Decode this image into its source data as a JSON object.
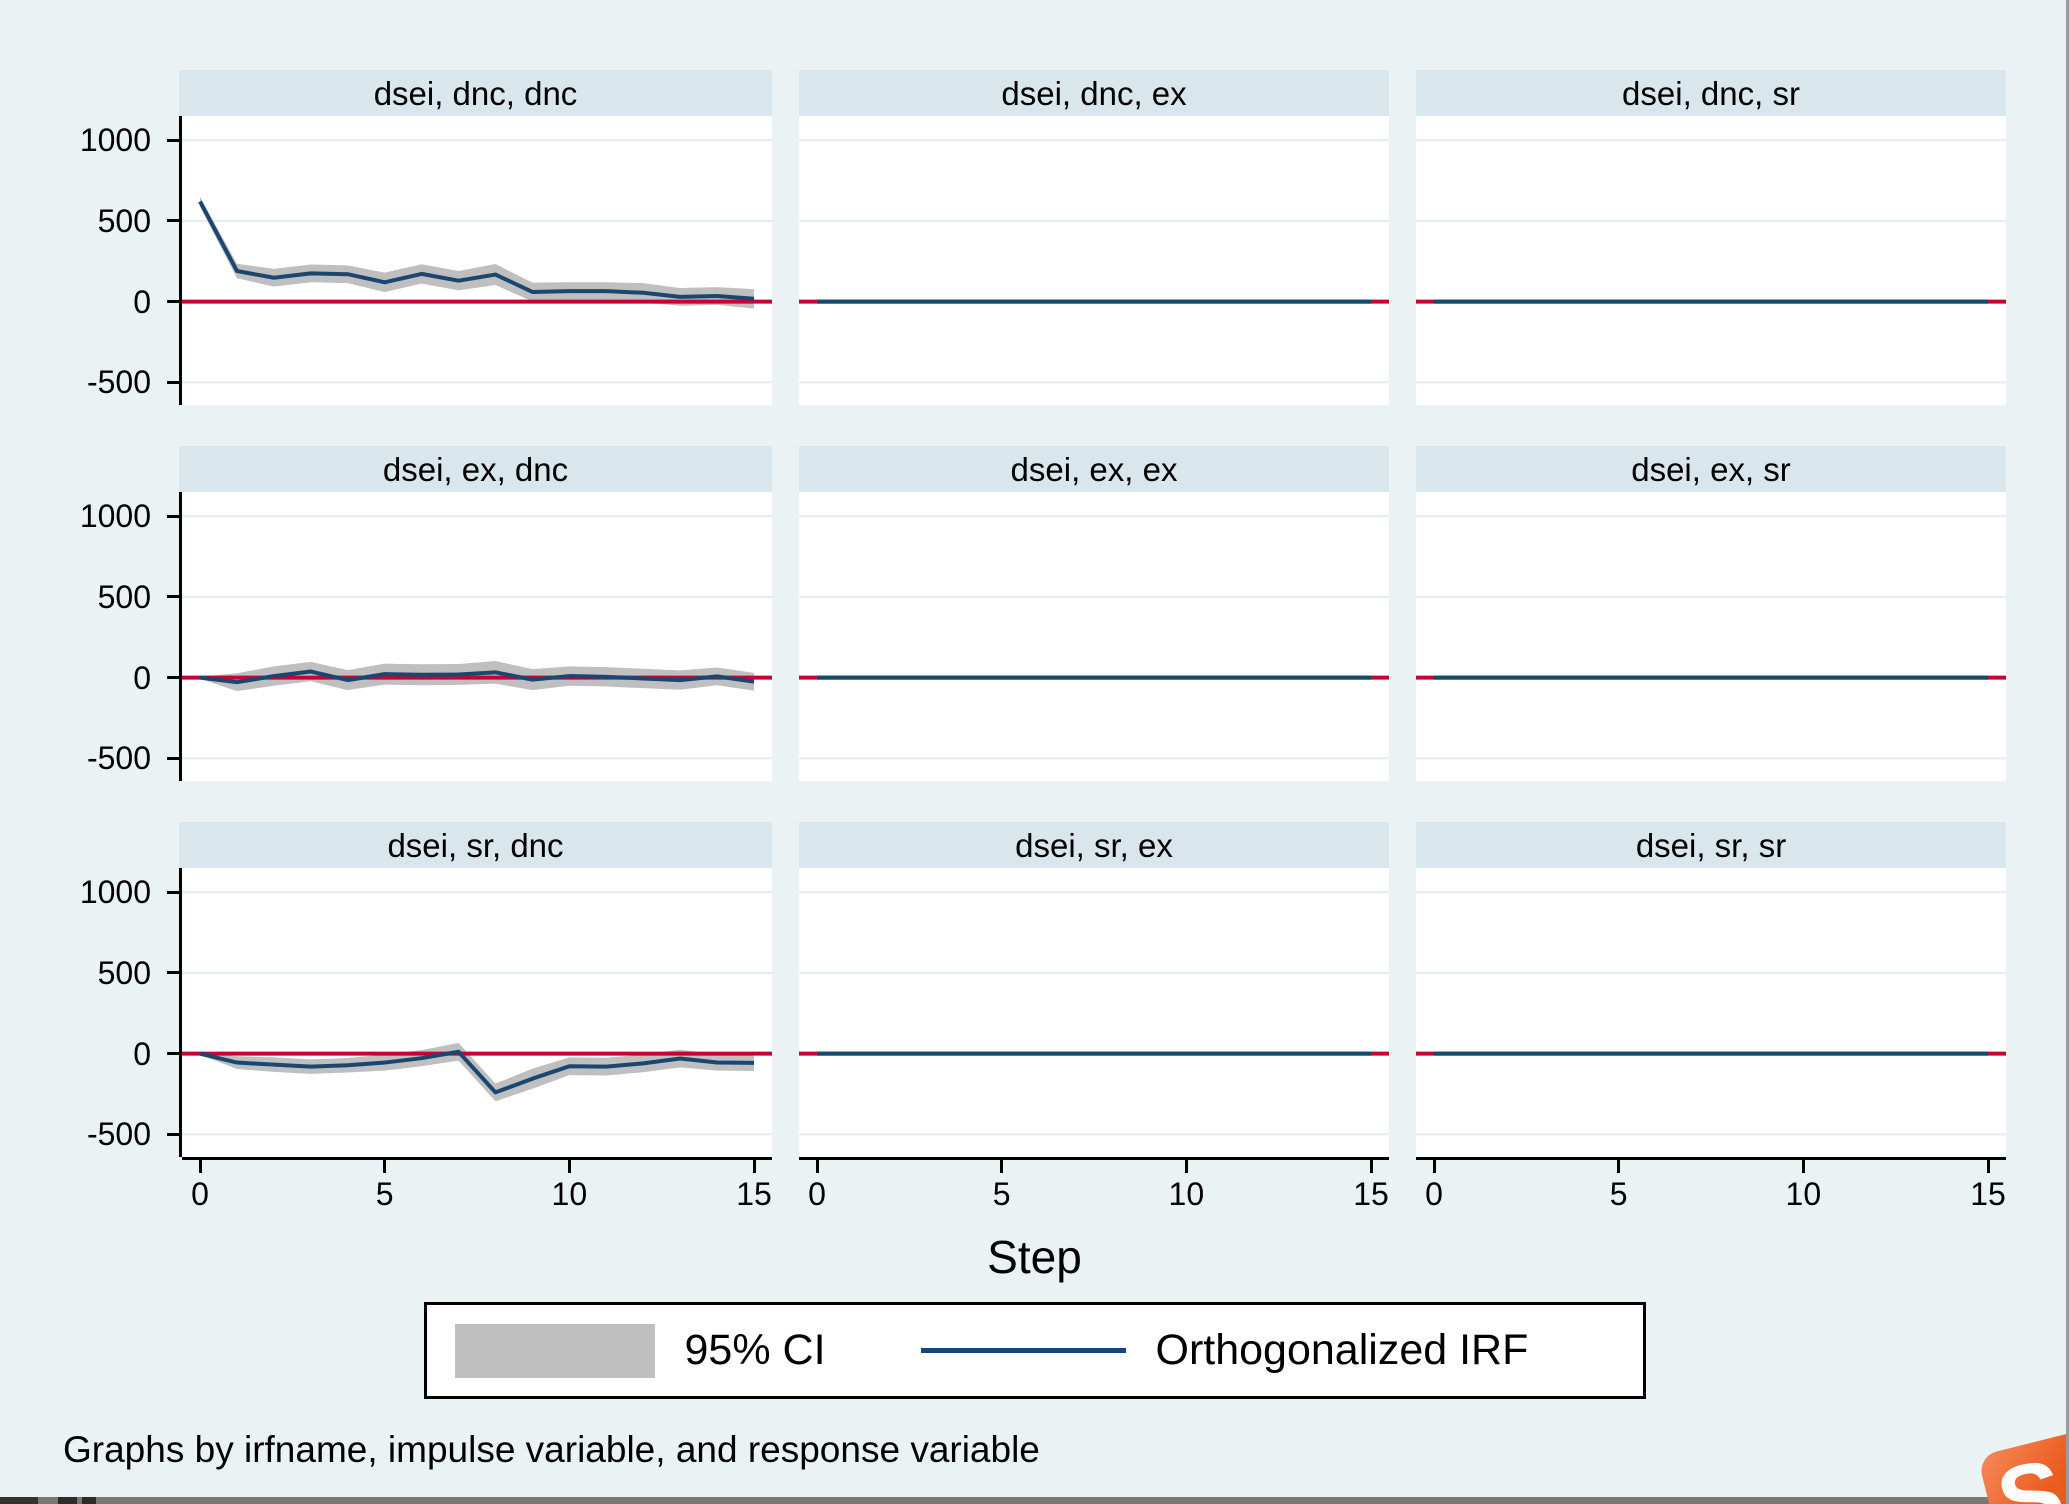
{
  "chart_data": {
    "type": "line",
    "x": [
      0,
      1,
      2,
      3,
      4,
      5,
      6,
      7,
      8,
      9,
      10,
      11,
      12,
      13,
      14,
      15
    ],
    "xlabel": "Step",
    "xticks": [
      0,
      5,
      10,
      15
    ],
    "xtick_labels": [
      "0",
      "5",
      "10",
      "15"
    ],
    "yticks": [
      1000,
      500,
      0,
      -500
    ],
    "ytick_labels": [
      "1000",
      "500",
      "0",
      "-500"
    ],
    "ylim": [
      -640,
      1150
    ],
    "grid": true,
    "zero_reference_line": 0,
    "legend": {
      "position": "bottom-center",
      "entries": [
        {
          "type": "area",
          "label": "95% CI"
        },
        {
          "type": "line",
          "label": "Orthogonalized IRF"
        }
      ]
    },
    "note": "Graphs by irfname, impulse variable, and response variable",
    "panels": [
      {
        "title": "dsei, dnc, dnc",
        "oirf": [
          620,
          190,
          148,
          175,
          170,
          120,
          172,
          130,
          168,
          60,
          65,
          65,
          55,
          30,
          35,
          18
        ],
        "ci_lo": [
          590,
          145,
          93,
          120,
          115,
          60,
          112,
          70,
          103,
          2,
          10,
          10,
          -5,
          -25,
          -20,
          -42
        ],
        "ci_hi": [
          650,
          235,
          203,
          230,
          225,
          180,
          232,
          190,
          233,
          118,
          120,
          120,
          115,
          85,
          90,
          78
        ]
      },
      {
        "title": "dsei, dnc, ex",
        "oirf": [
          0,
          0,
          0,
          0,
          0,
          0,
          0,
          0,
          0,
          0,
          0,
          0,
          0,
          0,
          0,
          0
        ]
      },
      {
        "title": "dsei, dnc, sr",
        "oirf": [
          0,
          0,
          0,
          0,
          0,
          0,
          0,
          0,
          0,
          0,
          0,
          0,
          0,
          0,
          0,
          0
        ]
      },
      {
        "title": "dsei, ex, dnc",
        "oirf": [
          0,
          -28,
          10,
          38,
          -15,
          22,
          18,
          20,
          33,
          -12,
          10,
          5,
          -5,
          -15,
          8,
          -25
        ],
        "ci_lo": [
          -6,
          -83,
          -50,
          -22,
          -77,
          -43,
          -47,
          -45,
          -37,
          -77,
          -50,
          -55,
          -65,
          -75,
          -47,
          -80
        ],
        "ci_hi": [
          6,
          27,
          70,
          98,
          47,
          87,
          83,
          85,
          103,
          53,
          70,
          65,
          55,
          45,
          63,
          30
        ]
      },
      {
        "title": "dsei, ex, ex",
        "oirf": [
          0,
          0,
          0,
          0,
          0,
          0,
          0,
          0,
          0,
          0,
          0,
          0,
          0,
          0,
          0,
          0
        ]
      },
      {
        "title": "dsei, ex, sr",
        "oirf": [
          0,
          0,
          0,
          0,
          0,
          0,
          0,
          0,
          0,
          0,
          0,
          0,
          0,
          0,
          0,
          0
        ]
      },
      {
        "title": "dsei, sr, dnc",
        "oirf": [
          0,
          -55,
          -68,
          -80,
          -72,
          -55,
          -28,
          12,
          -240,
          -155,
          -78,
          -80,
          -60,
          -30,
          -55,
          -57
        ],
        "ci_lo": [
          -6,
          -95,
          -113,
          -125,
          -117,
          -105,
          -78,
          -43,
          -295,
          -217,
          -133,
          -135,
          -115,
          -85,
          -105,
          -107
        ],
        "ci_hi": [
          6,
          -15,
          -23,
          -35,
          -27,
          -5,
          22,
          67,
          -185,
          -93,
          -23,
          -25,
          -5,
          25,
          -5,
          -7
        ]
      },
      {
        "title": "dsei, sr, ex",
        "oirf": [
          0,
          0,
          0,
          0,
          0,
          0,
          0,
          0,
          0,
          0,
          0,
          0,
          0,
          0,
          0,
          0
        ]
      },
      {
        "title": "dsei, sr, sr",
        "oirf": [
          0,
          0,
          0,
          0,
          0,
          0,
          0,
          0,
          0,
          0,
          0,
          0,
          0,
          0,
          0,
          0
        ]
      }
    ],
    "colors": {
      "irf_line": "#1a476f",
      "ci_band": "#bfbfbf",
      "zero_line": "#c10534",
      "gridline": "#e4eef1",
      "plot_bg": "#ffffff",
      "panel_header_bg": "#d9e6ec",
      "page_bg": "#eaf2f3",
      "axis": "#000000"
    }
  },
  "overlay": {
    "logo_letter": "S"
  }
}
